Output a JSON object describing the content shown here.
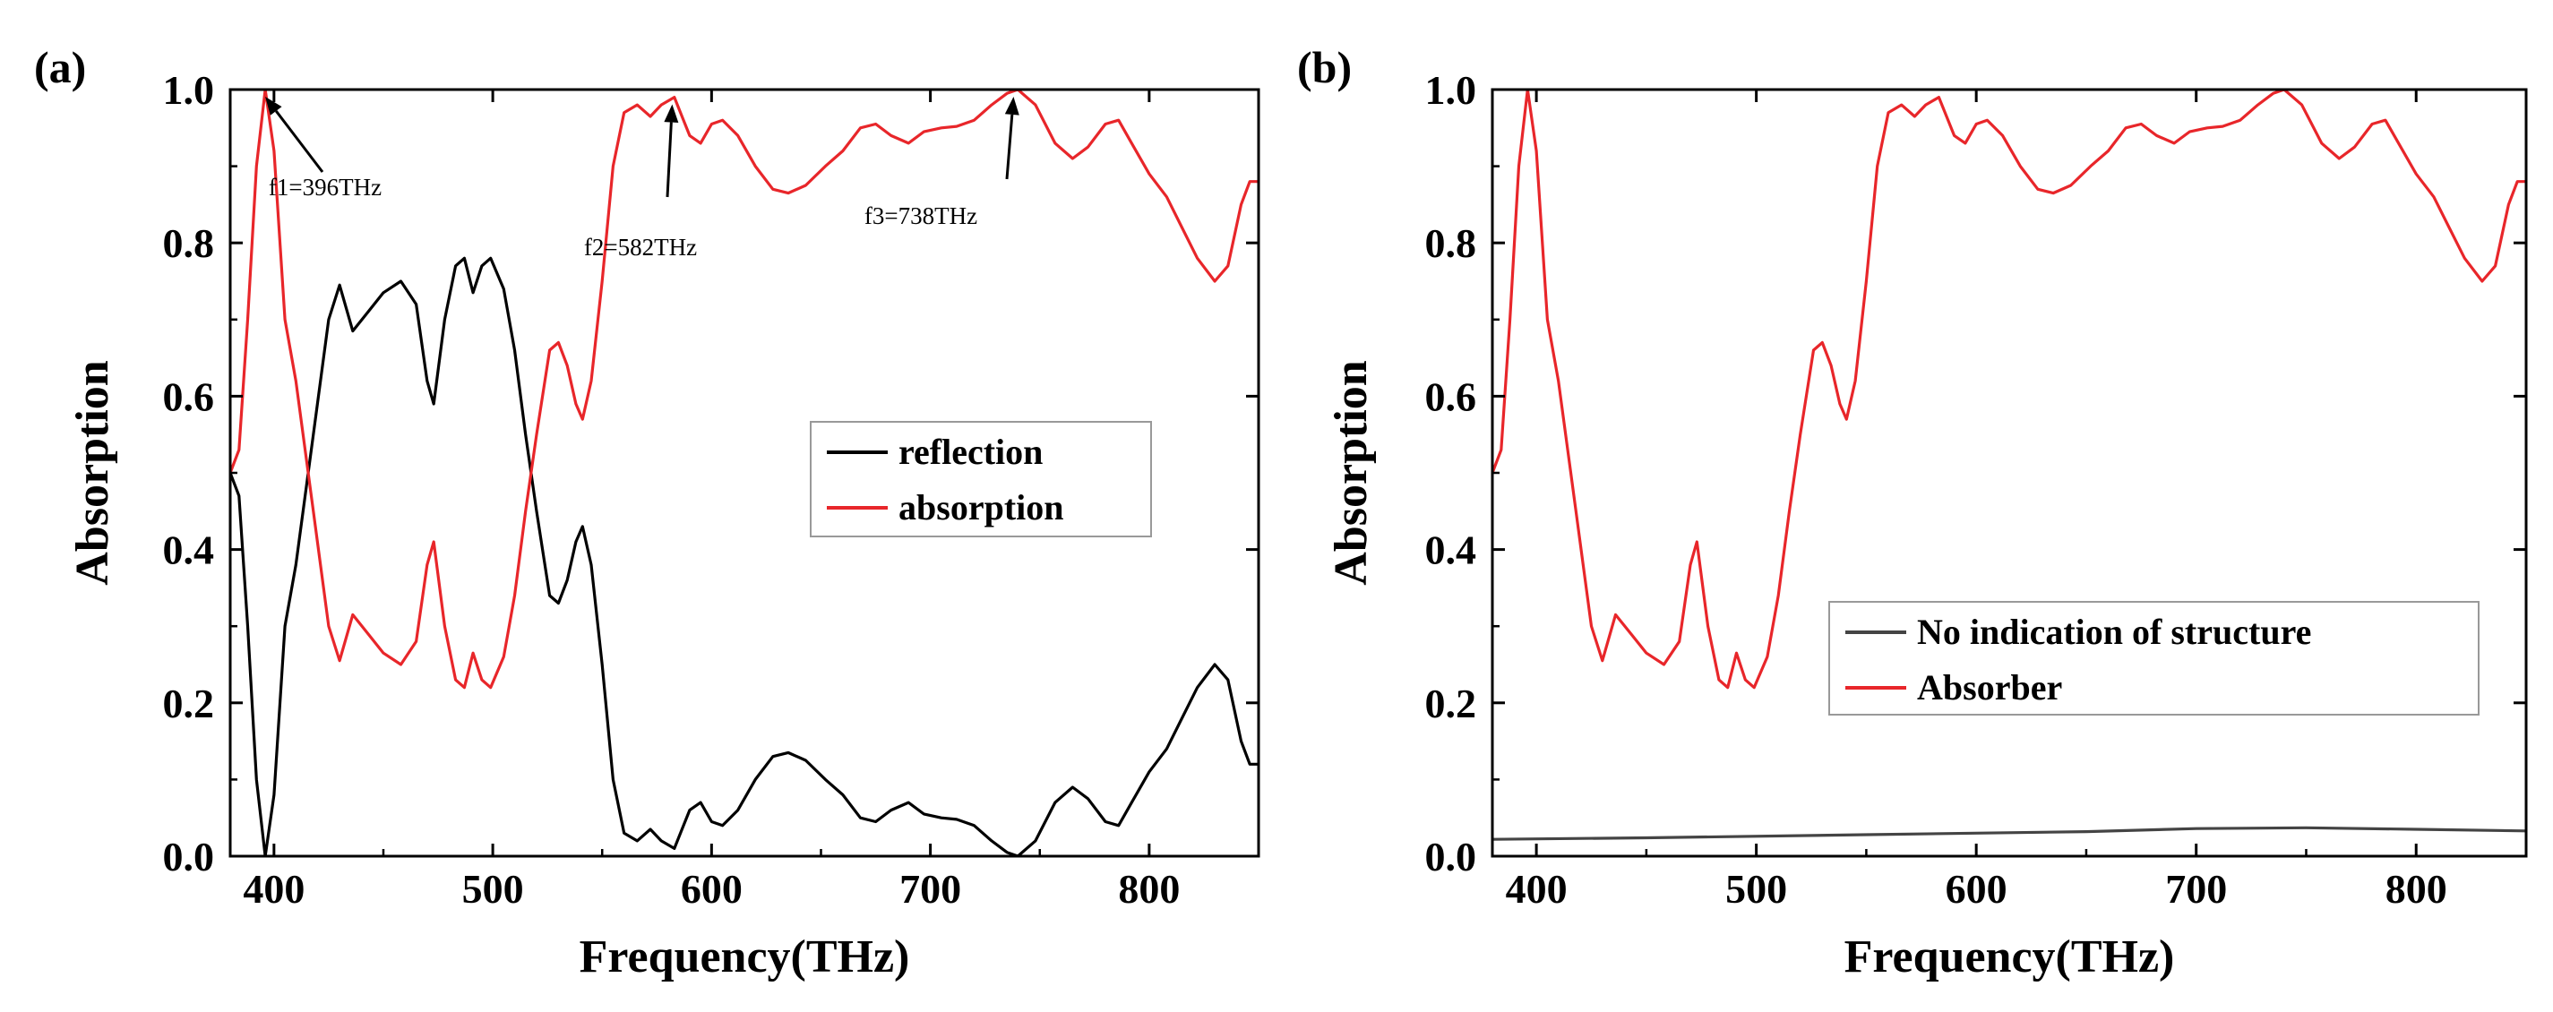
{
  "panels": [
    {
      "letter": "(a)",
      "xlabel": "Frequency(THz)",
      "ylabel": "Absorption"
    },
    {
      "letter": "(b)",
      "xlabel": "Frequency(THz)",
      "ylabel": "Absorption"
    }
  ],
  "chart_data": [
    {
      "type": "line",
      "title": "",
      "xlabel": "Frequency(THz)",
      "ylabel": "Absorption",
      "xlim": [
        380,
        850
      ],
      "ylim": [
        0,
        1.0
      ],
      "xticks": [
        400,
        500,
        600,
        700,
        800
      ],
      "yticks": [
        0.0,
        0.2,
        0.4,
        0.6,
        0.8,
        1.0
      ],
      "ytick_labels": [
        "0.0",
        "0.2",
        "0.4",
        "0.6",
        "0.8",
        "1.0"
      ],
      "grid": false,
      "legend_position": "center-right",
      "series": [
        {
          "name": "reflection",
          "color": "#000000",
          "points": [
            [
              380,
              0.5
            ],
            [
              384,
              0.47
            ],
            [
              388,
              0.3
            ],
            [
              392,
              0.1
            ],
            [
              396,
              0.0
            ],
            [
              400,
              0.08
            ],
            [
              405,
              0.3
            ],
            [
              410,
              0.38
            ],
            [
              418,
              0.55
            ],
            [
              425,
              0.7
            ],
            [
              430,
              0.745
            ],
            [
              436,
              0.685
            ],
            [
              443,
              0.71
            ],
            [
              450,
              0.735
            ],
            [
              458,
              0.75
            ],
            [
              465,
              0.72
            ],
            [
              470,
              0.62
            ],
            [
              473,
              0.59
            ],
            [
              478,
              0.7
            ],
            [
              483,
              0.77
            ],
            [
              487,
              0.78
            ],
            [
              491,
              0.735
            ],
            [
              495,
              0.77
            ],
            [
              499,
              0.78
            ],
            [
              505,
              0.74
            ],
            [
              510,
              0.66
            ],
            [
              515,
              0.55
            ],
            [
              520,
              0.45
            ],
            [
              526,
              0.34
            ],
            [
              530,
              0.33
            ],
            [
              534,
              0.36
            ],
            [
              538,
              0.41
            ],
            [
              541,
              0.43
            ],
            [
              545,
              0.38
            ],
            [
              550,
              0.25
            ],
            [
              555,
              0.1
            ],
            [
              560,
              0.03
            ],
            [
              566,
              0.02
            ],
            [
              572,
              0.035
            ],
            [
              577,
              0.02
            ],
            [
              583,
              0.01
            ],
            [
              590,
              0.06
            ],
            [
              595,
              0.07
            ],
            [
              600,
              0.045
            ],
            [
              605,
              0.04
            ],
            [
              612,
              0.06
            ],
            [
              620,
              0.1
            ],
            [
              628,
              0.13
            ],
            [
              635,
              0.135
            ],
            [
              643,
              0.125
            ],
            [
              652,
              0.1
            ],
            [
              660,
              0.08
            ],
            [
              668,
              0.05
            ],
            [
              675,
              0.045
            ],
            [
              682,
              0.06
            ],
            [
              690,
              0.07
            ],
            [
              697,
              0.055
            ],
            [
              705,
              0.05
            ],
            [
              712,
              0.048
            ],
            [
              720,
              0.04
            ],
            [
              728,
              0.02
            ],
            [
              735,
              0.005
            ],
            [
              740,
              0.0
            ],
            [
              748,
              0.02
            ],
            [
              757,
              0.07
            ],
            [
              765,
              0.09
            ],
            [
              772,
              0.075
            ],
            [
              780,
              0.045
            ],
            [
              786,
              0.04
            ],
            [
              792,
              0.07
            ],
            [
              800,
              0.11
            ],
            [
              808,
              0.14
            ],
            [
              815,
              0.18
            ],
            [
              822,
              0.22
            ],
            [
              830,
              0.25
            ],
            [
              836,
              0.23
            ],
            [
              842,
              0.15
            ],
            [
              846,
              0.12
            ],
            [
              850,
              0.12
            ]
          ]
        },
        {
          "name": "absorption",
          "color": "#e8262a",
          "points": [
            [
              380,
              0.5
            ],
            [
              384,
              0.53
            ],
            [
              388,
              0.7
            ],
            [
              392,
              0.9
            ],
            [
              396,
              1.0
            ],
            [
              400,
              0.92
            ],
            [
              405,
              0.7
            ],
            [
              410,
              0.62
            ],
            [
              418,
              0.45
            ],
            [
              425,
              0.3
            ],
            [
              430,
              0.255
            ],
            [
              436,
              0.315
            ],
            [
              443,
              0.29
            ],
            [
              450,
              0.265
            ],
            [
              458,
              0.25
            ],
            [
              465,
              0.28
            ],
            [
              470,
              0.38
            ],
            [
              473,
              0.41
            ],
            [
              478,
              0.3
            ],
            [
              483,
              0.23
            ],
            [
              487,
              0.22
            ],
            [
              491,
              0.265
            ],
            [
              495,
              0.23
            ],
            [
              499,
              0.22
            ],
            [
              505,
              0.26
            ],
            [
              510,
              0.34
            ],
            [
              515,
              0.45
            ],
            [
              520,
              0.55
            ],
            [
              526,
              0.66
            ],
            [
              530,
              0.67
            ],
            [
              534,
              0.64
            ],
            [
              538,
              0.59
            ],
            [
              541,
              0.57
            ],
            [
              545,
              0.62
            ],
            [
              550,
              0.75
            ],
            [
              555,
              0.9
            ],
            [
              560,
              0.97
            ],
            [
              566,
              0.98
            ],
            [
              572,
              0.965
            ],
            [
              577,
              0.98
            ],
            [
              583,
              0.99
            ],
            [
              590,
              0.94
            ],
            [
              595,
              0.93
            ],
            [
              600,
              0.955
            ],
            [
              605,
              0.96
            ],
            [
              612,
              0.94
            ],
            [
              620,
              0.9
            ],
            [
              628,
              0.87
            ],
            [
              635,
              0.865
            ],
            [
              643,
              0.875
            ],
            [
              652,
              0.9
            ],
            [
              660,
              0.92
            ],
            [
              668,
              0.95
            ],
            [
              675,
              0.955
            ],
            [
              682,
              0.94
            ],
            [
              690,
              0.93
            ],
            [
              697,
              0.945
            ],
            [
              705,
              0.95
            ],
            [
              712,
              0.952
            ],
            [
              720,
              0.96
            ],
            [
              728,
              0.98
            ],
            [
              735,
              0.995
            ],
            [
              740,
              1.0
            ],
            [
              748,
              0.98
            ],
            [
              757,
              0.93
            ],
            [
              765,
              0.91
            ],
            [
              772,
              0.925
            ],
            [
              780,
              0.955
            ],
            [
              786,
              0.96
            ],
            [
              792,
              0.93
            ],
            [
              800,
              0.89
            ],
            [
              808,
              0.86
            ],
            [
              815,
              0.82
            ],
            [
              822,
              0.78
            ],
            [
              830,
              0.75
            ],
            [
              836,
              0.77
            ],
            [
              842,
              0.85
            ],
            [
              846,
              0.88
            ],
            [
              850,
              0.88
            ]
          ]
        }
      ],
      "annotations": [
        {
          "text": "f1=396THz",
          "x": 396,
          "y": 1.0
        },
        {
          "text": "f2=582THz",
          "x": 582,
          "y": 0.99
        },
        {
          "text": "f3=738THz",
          "x": 738,
          "y": 1.0
        }
      ]
    },
    {
      "type": "line",
      "title": "",
      "xlabel": "Frequency(THz)",
      "ylabel": "Absorption",
      "xlim": [
        380,
        850
      ],
      "ylim": [
        0,
        1.0
      ],
      "xticks": [
        400,
        500,
        600,
        700,
        800
      ],
      "yticks": [
        0.0,
        0.2,
        0.4,
        0.6,
        0.8,
        1.0
      ],
      "ytick_labels": [
        "0.0",
        "0.2",
        "0.4",
        "0.6",
        "0.8",
        "1.0"
      ],
      "grid": false,
      "legend_position": "lower-right",
      "series": [
        {
          "name": "No indication of structure",
          "color": "#444444",
          "points": [
            [
              380,
              0.022
            ],
            [
              450,
              0.024
            ],
            [
              550,
              0.028
            ],
            [
              650,
              0.032
            ],
            [
              700,
              0.036
            ],
            [
              750,
              0.037
            ],
            [
              800,
              0.035
            ],
            [
              850,
              0.033
            ]
          ]
        },
        {
          "name": "Absorber",
          "color": "#e8262a",
          "points": [
            [
              380,
              0.5
            ],
            [
              384,
              0.53
            ],
            [
              388,
              0.7
            ],
            [
              392,
              0.9
            ],
            [
              396,
              1.0
            ],
            [
              400,
              0.92
            ],
            [
              405,
              0.7
            ],
            [
              410,
              0.62
            ],
            [
              418,
              0.45
            ],
            [
              425,
              0.3
            ],
            [
              430,
              0.255
            ],
            [
              436,
              0.315
            ],
            [
              443,
              0.29
            ],
            [
              450,
              0.265
            ],
            [
              458,
              0.25
            ],
            [
              465,
              0.28
            ],
            [
              470,
              0.38
            ],
            [
              473,
              0.41
            ],
            [
              478,
              0.3
            ],
            [
              483,
              0.23
            ],
            [
              487,
              0.22
            ],
            [
              491,
              0.265
            ],
            [
              495,
              0.23
            ],
            [
              499,
              0.22
            ],
            [
              505,
              0.26
            ],
            [
              510,
              0.34
            ],
            [
              515,
              0.45
            ],
            [
              520,
              0.55
            ],
            [
              526,
              0.66
            ],
            [
              530,
              0.67
            ],
            [
              534,
              0.64
            ],
            [
              538,
              0.59
            ],
            [
              541,
              0.57
            ],
            [
              545,
              0.62
            ],
            [
              550,
              0.75
            ],
            [
              555,
              0.9
            ],
            [
              560,
              0.97
            ],
            [
              566,
              0.98
            ],
            [
              572,
              0.965
            ],
            [
              577,
              0.98
            ],
            [
              583,
              0.99
            ],
            [
              590,
              0.94
            ],
            [
              595,
              0.93
            ],
            [
              600,
              0.955
            ],
            [
              605,
              0.96
            ],
            [
              612,
              0.94
            ],
            [
              620,
              0.9
            ],
            [
              628,
              0.87
            ],
            [
              635,
              0.865
            ],
            [
              643,
              0.875
            ],
            [
              652,
              0.9
            ],
            [
              660,
              0.92
            ],
            [
              668,
              0.95
            ],
            [
              675,
              0.955
            ],
            [
              682,
              0.94
            ],
            [
              690,
              0.93
            ],
            [
              697,
              0.945
            ],
            [
              705,
              0.95
            ],
            [
              712,
              0.952
            ],
            [
              720,
              0.96
            ],
            [
              728,
              0.98
            ],
            [
              735,
              0.995
            ],
            [
              740,
              1.0
            ],
            [
              748,
              0.98
            ],
            [
              757,
              0.93
            ],
            [
              765,
              0.91
            ],
            [
              772,
              0.925
            ],
            [
              780,
              0.955
            ],
            [
              786,
              0.96
            ],
            [
              792,
              0.93
            ],
            [
              800,
              0.89
            ],
            [
              808,
              0.86
            ],
            [
              815,
              0.82
            ],
            [
              822,
              0.78
            ],
            [
              830,
              0.75
            ],
            [
              836,
              0.77
            ],
            [
              842,
              0.85
            ],
            [
              846,
              0.88
            ],
            [
              850,
              0.88
            ]
          ]
        }
      ],
      "annotations": []
    }
  ]
}
